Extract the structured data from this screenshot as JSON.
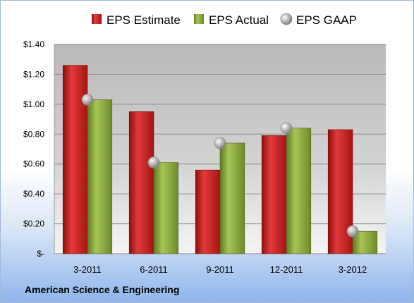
{
  "chart_data": {
    "type": "bar",
    "categories": [
      "3-2011",
      "6-2011",
      "9-2011",
      "12-2011",
      "3-2012"
    ],
    "series": [
      {
        "name": "EPS Estimate",
        "kind": "bar",
        "values": [
          1.26,
          0.95,
          0.56,
          0.79,
          0.83
        ],
        "color": "#cc1f1f"
      },
      {
        "name": "EPS Actual",
        "kind": "bar",
        "values": [
          1.03,
          0.61,
          0.74,
          0.84,
          0.15
        ],
        "color": "#8caa3c"
      },
      {
        "name": "EPS GAAP",
        "kind": "marker",
        "values": [
          1.03,
          0.61,
          0.74,
          0.84,
          0.15
        ],
        "color": "#b4b4b4"
      }
    ],
    "ylim": [
      0,
      1.4
    ],
    "yticks": [
      0,
      0.2,
      0.4,
      0.6,
      0.8,
      1.0,
      1.2,
      1.4
    ],
    "ytick_labels": [
      "$-",
      "$0.20",
      "$0.40",
      "$0.60",
      "$0.80",
      "$1.00",
      "$1.20",
      "$1.40"
    ],
    "grid": true,
    "legend": "top",
    "footer": "American Science & Engineering"
  }
}
